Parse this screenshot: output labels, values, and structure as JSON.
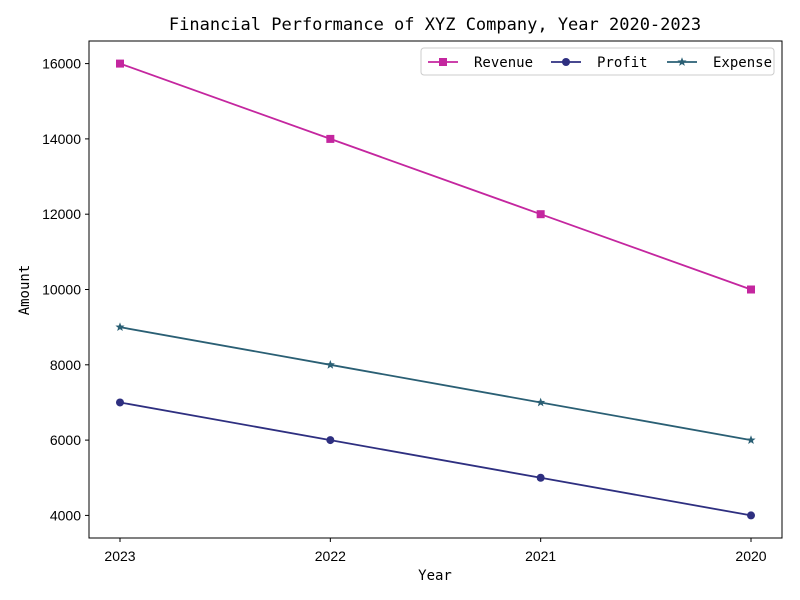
{
  "chart_data": {
    "type": "line",
    "title": "Financial Performance of XYZ Company, Year 2020-2023",
    "xlabel": "Year",
    "ylabel": "Amount",
    "categories": [
      "2023",
      "2022",
      "2021",
      "2020"
    ],
    "ylim": [
      3400,
      16600
    ],
    "yticks": [
      4000,
      6000,
      8000,
      10000,
      12000,
      14000,
      16000
    ],
    "grid": false,
    "legend_position": "top-right",
    "series": [
      {
        "name": "Revenue",
        "values": [
          16000,
          14000,
          12000,
          10000
        ],
        "color": "#c4269f",
        "marker": "square"
      },
      {
        "name": "Profit",
        "values": [
          7000,
          6000,
          5000,
          4000
        ],
        "color": "#2e2f80",
        "marker": "circle"
      },
      {
        "name": "Expense",
        "values": [
          9000,
          8000,
          7000,
          6000
        ],
        "color": "#2a5f74",
        "marker": "star"
      }
    ]
  }
}
